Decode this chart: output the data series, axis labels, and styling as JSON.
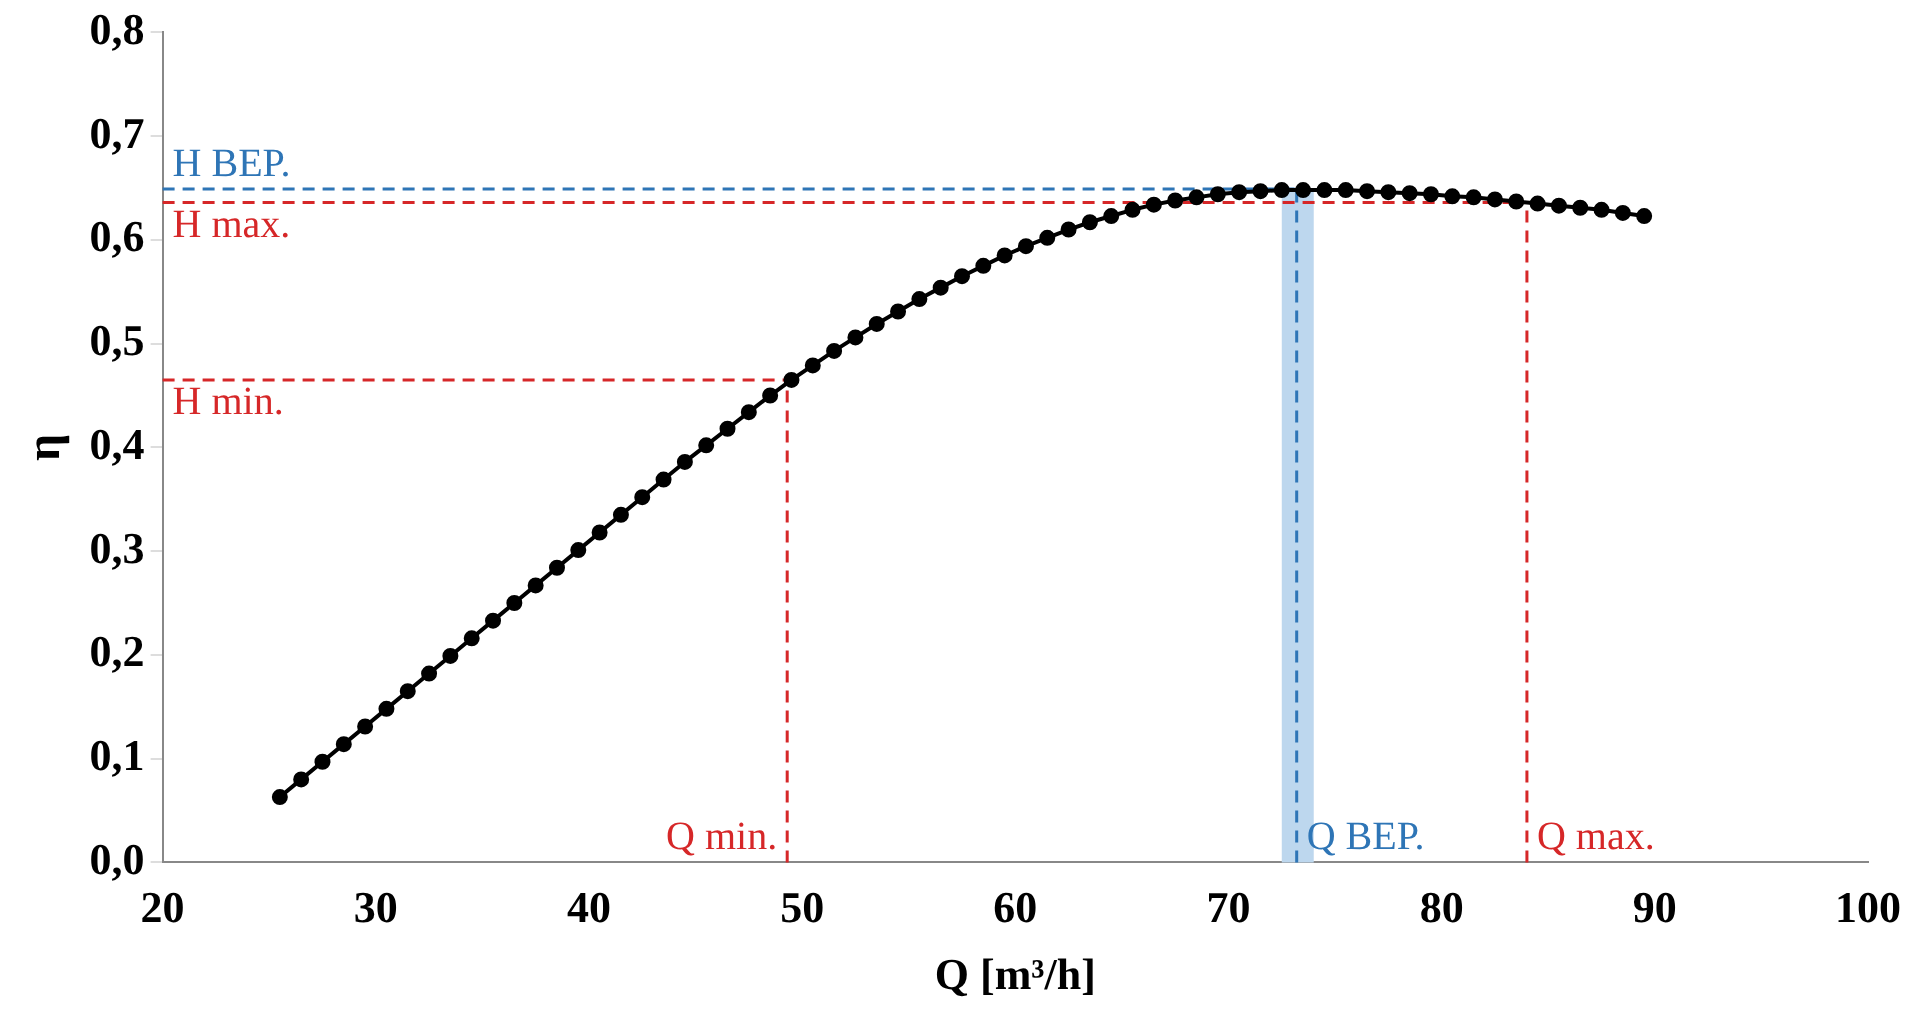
{
  "chart_data": {
    "type": "line",
    "xlabel": "Q [m³/h]",
    "ylabel": "η",
    "x": [
      25.5,
      26.5,
      27.5,
      28.5,
      29.5,
      30.5,
      31.5,
      32.5,
      33.5,
      34.5,
      35.5,
      36.5,
      37.5,
      38.5,
      39.5,
      40.5,
      41.5,
      42.5,
      43.5,
      44.5,
      45.5,
      46.5,
      47.5,
      48.5,
      49.5,
      50.5,
      51.5,
      52.5,
      53.5,
      54.5,
      55.5,
      56.5,
      57.5,
      58.5,
      59.5,
      60.5,
      61.5,
      62.5,
      63.5,
      64.5,
      65.5,
      66.5,
      67.5,
      68.5,
      69.5,
      70.5,
      71.5,
      72.5,
      73.5,
      74.5,
      75.5,
      76.5,
      77.5,
      78.5,
      79.5,
      80.5,
      81.5,
      82.5,
      83.5,
      84.5,
      85.5,
      86.5,
      87.5,
      88.5,
      89.5
    ],
    "series": [
      {
        "color": "#000000",
        "values": [
          0.063,
          0.08,
          0.097,
          0.114,
          0.131,
          0.148,
          0.165,
          0.182,
          0.199,
          0.216,
          0.233,
          0.25,
          0.267,
          0.284,
          0.301,
          0.318,
          0.335,
          0.352,
          0.369,
          0.386,
          0.402,
          0.418,
          0.434,
          0.45,
          0.465,
          0.479,
          0.493,
          0.506,
          0.519,
          0.531,
          0.543,
          0.554,
          0.565,
          0.575,
          0.585,
          0.594,
          0.602,
          0.61,
          0.617,
          0.623,
          0.629,
          0.634,
          0.638,
          0.641,
          0.644,
          0.646,
          0.647,
          0.648,
          0.648,
          0.648,
          0.648,
          0.647,
          0.646,
          0.645,
          0.644,
          0.642,
          0.641,
          0.639,
          0.637,
          0.635,
          0.633,
          0.631,
          0.629,
          0.626,
          0.623
        ]
      }
    ],
    "xlim": [
      20,
      100
    ],
    "xticks": [
      20,
      30,
      40,
      50,
      60,
      70,
      80,
      90,
      100
    ],
    "ylim": [
      0,
      0.8
    ],
    "yticks": [
      {
        "value": 0,
        "label": "0,0"
      },
      {
        "value": 0.1,
        "label": "0,1"
      },
      {
        "value": 0.2,
        "label": "0,2"
      },
      {
        "value": 0.3,
        "label": "0,3"
      },
      {
        "value": 0.4,
        "label": "0,4"
      },
      {
        "value": 0.5,
        "label": "0,5"
      },
      {
        "value": 0.6,
        "label": "0,6"
      },
      {
        "value": 0.7,
        "label": "0,7"
      },
      {
        "value": 0.8,
        "label": "0,8"
      }
    ],
    "ref_lines": [
      {
        "axis": "y",
        "value": 0.649,
        "label": "H BEP.",
        "color": "#2e75b6",
        "line_style": "dashed"
      },
      {
        "axis": "y",
        "value": 0.636,
        "label": "H max.",
        "color": "#d62728",
        "line_style": "dashed"
      },
      {
        "axis": "y",
        "value": 0.465,
        "label": "H min.",
        "color": "#d62728",
        "line_style": "dashed"
      },
      {
        "axis": "x",
        "value": 49.3,
        "label": "Q min.",
        "color": "#d62728",
        "line_style": "dashed"
      },
      {
        "axis": "x",
        "value": 73.2,
        "label": "Q BEP.",
        "color": "#2e75b6",
        "line_style": "dashed"
      },
      {
        "axis": "x",
        "value": 84.0,
        "label": "Q max.",
        "color": "#d62728",
        "line_style": "dashed"
      }
    ],
    "bands": [
      {
        "axis": "x",
        "from": 72.5,
        "to": 74.0,
        "color": "#bdd7ee"
      }
    ],
    "grid": false,
    "legend": false,
    "marker": "circle",
    "line_style": "solid"
  }
}
